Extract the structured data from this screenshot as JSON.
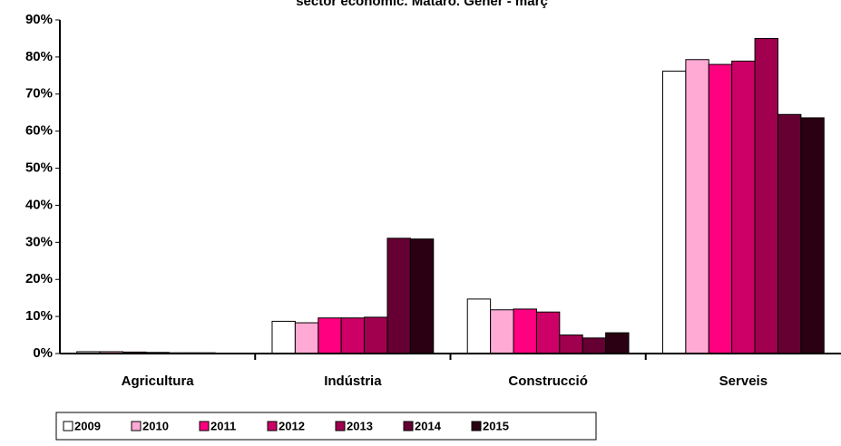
{
  "chart_data": {
    "type": "bar",
    "title": "sector econòmic. Mataró. Gener - març",
    "categories": [
      "Agricultura",
      "Indústria",
      "Construcció",
      "Serveis"
    ],
    "series": [
      {
        "name": "2009",
        "color": "#ffffff",
        "values": [
          0.5,
          8.7,
          14.7,
          76.2
        ]
      },
      {
        "name": "2010",
        "color": "#ffaad4",
        "values": [
          0.5,
          8.3,
          11.8,
          79.3
        ]
      },
      {
        "name": "2011",
        "color": "#ff0080",
        "values": [
          0.4,
          9.6,
          12.0,
          78.0
        ]
      },
      {
        "name": "2012",
        "color": "#cc0066",
        "values": [
          0.3,
          9.6,
          11.2,
          78.9
        ]
      },
      {
        "name": "2013",
        "color": "#a0004e",
        "values": [
          0.2,
          9.8,
          5.0,
          85.0
        ]
      },
      {
        "name": "2014",
        "color": "#660033",
        "values": [
          0.2,
          31.1,
          4.2,
          64.5
        ]
      },
      {
        "name": "2015",
        "color": "#2a0012",
        "values": [
          0.1,
          30.9,
          5.6,
          63.6
        ]
      }
    ],
    "ylim": [
      0,
      90
    ],
    "yticks": [
      {
        "value": 0,
        "label": "0%"
      },
      {
        "value": 10,
        "label": "10%"
      },
      {
        "value": 20,
        "label": "20%"
      },
      {
        "value": 30,
        "label": "30%"
      },
      {
        "value": 40,
        "label": "40%"
      },
      {
        "value": 50,
        "label": "50%"
      },
      {
        "value": 60,
        "label": "60%"
      },
      {
        "value": 70,
        "label": "70%"
      },
      {
        "value": 80,
        "label": "80%"
      },
      {
        "value": 90,
        "label": "90%"
      }
    ],
    "grid": false,
    "legend": "bottom"
  }
}
